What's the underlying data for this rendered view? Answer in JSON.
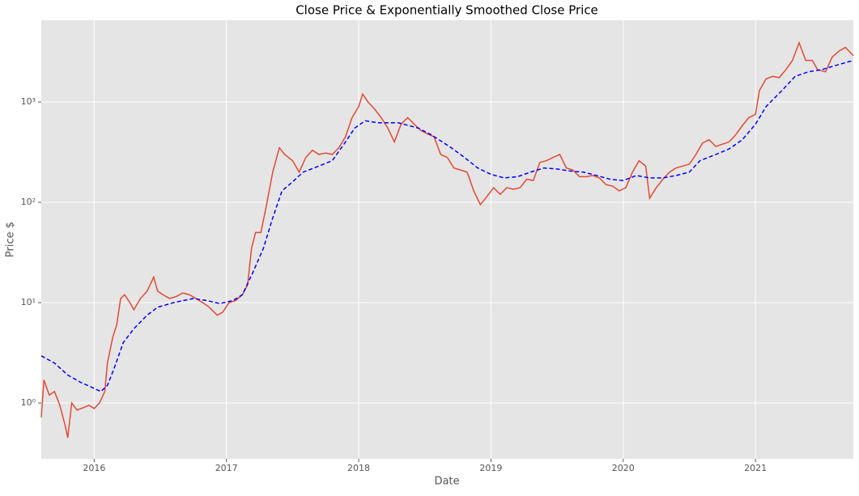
{
  "chart_data": {
    "type": "line",
    "title": "Close Price & Exponentially Smoothed Close Price",
    "x_label": "Date",
    "y_label": "Price $",
    "log_y": true,
    "grid": true,
    "xlim": [
      2015.6,
      2021.74
    ],
    "xticks": [
      2016,
      2017,
      2018,
      2019,
      2020,
      2021
    ],
    "ylim": [
      0.278,
      6530
    ],
    "yticks": [
      {
        "value": 1,
        "label": "10⁰"
      },
      {
        "value": 10,
        "label": "10¹"
      },
      {
        "value": 100,
        "label": "10²"
      },
      {
        "value": 1000,
        "label": "10³"
      }
    ],
    "series": [
      {
        "color": "#e24a33",
        "dash": false,
        "x": [
          2015.6,
          2015.62,
          2015.66,
          2015.7,
          2015.74,
          2015.78,
          2015.8,
          2015.83,
          2015.87,
          2015.92,
          2015.96,
          2016.0,
          2016.04,
          2016.08,
          2016.1,
          2016.14,
          2016.17,
          2016.2,
          2016.23,
          2016.27,
          2016.3,
          2016.35,
          2016.4,
          2016.45,
          2016.48,
          2016.52,
          2016.57,
          2016.62,
          2016.67,
          2016.72,
          2016.77,
          2016.82,
          2016.87,
          2016.93,
          2016.97,
          2017.02,
          2017.07,
          2017.12,
          2017.16,
          2017.19,
          2017.22,
          2017.26,
          2017.3,
          2017.35,
          2017.4,
          2017.44,
          2017.5,
          2017.55,
          2017.6,
          2017.65,
          2017.7,
          2017.75,
          2017.8,
          2017.85,
          2017.9,
          2017.95,
          2018.0,
          2018.03,
          2018.07,
          2018.12,
          2018.17,
          2018.22,
          2018.27,
          2018.32,
          2018.37,
          2018.42,
          2018.47,
          2018.52,
          2018.57,
          2018.62,
          2018.67,
          2018.72,
          2018.77,
          2018.82,
          2018.87,
          2018.92,
          2018.96,
          2019.02,
          2019.07,
          2019.12,
          2019.17,
          2019.22,
          2019.27,
          2019.32,
          2019.37,
          2019.42,
          2019.47,
          2019.52,
          2019.57,
          2019.62,
          2019.67,
          2019.72,
          2019.77,
          2019.82,
          2019.87,
          2019.92,
          2019.97,
          2020.02,
          2020.07,
          2020.12,
          2020.17,
          2020.2,
          2020.25,
          2020.3,
          2020.35,
          2020.4,
          2020.45,
          2020.5,
          2020.55,
          2020.6,
          2020.65,
          2020.7,
          2020.75,
          2020.8,
          2020.85,
          2020.9,
          2020.95,
          2021.0,
          2021.03,
          2021.08,
          2021.13,
          2021.18,
          2021.23,
          2021.28,
          2021.33,
          2021.38,
          2021.43,
          2021.47,
          2021.53,
          2021.58,
          2021.63,
          2021.68,
          2021.74
        ],
        "values": [
          0.72,
          1.7,
          1.2,
          1.3,
          0.95,
          0.6,
          0.45,
          1.0,
          0.85,
          0.9,
          0.95,
          0.88,
          1.0,
          1.3,
          2.5,
          4.5,
          6,
          11,
          12,
          10,
          8.5,
          11,
          13,
          18,
          13,
          12,
          11,
          11.5,
          12.5,
          12,
          11,
          10,
          9,
          7.5,
          8,
          10,
          10.5,
          12,
          15,
          35,
          50,
          50,
          90,
          200,
          350,
          300,
          260,
          200,
          280,
          330,
          300,
          310,
          300,
          350,
          450,
          700,
          900,
          1200,
          1000,
          850,
          700,
          550,
          400,
          600,
          700,
          600,
          520,
          480,
          450,
          300,
          280,
          220,
          210,
          200,
          130,
          95,
          110,
          140,
          120,
          140,
          135,
          140,
          170,
          165,
          250,
          260,
          280,
          300,
          220,
          210,
          180,
          180,
          185,
          175,
          150,
          145,
          130,
          140,
          200,
          260,
          230,
          110,
          140,
          170,
          200,
          220,
          230,
          240,
          300,
          390,
          420,
          360,
          380,
          400,
          470,
          580,
          700,
          750,
          1300,
          1700,
          1800,
          1750,
          2100,
          2600,
          3900,
          2600,
          2600,
          2100,
          2000,
          2800,
          3200,
          3500,
          2900
        ]
      },
      {
        "color": "#0000ff",
        "dash": true,
        "x": [
          2015.6,
          2015.7,
          2015.8,
          2015.9,
          2016.0,
          2016.05,
          2016.1,
          2016.15,
          2016.22,
          2016.3,
          2016.4,
          2016.48,
          2016.6,
          2016.75,
          2016.85,
          2016.95,
          2017.05,
          2017.12,
          2017.2,
          2017.28,
          2017.35,
          2017.42,
          2017.5,
          2017.58,
          2017.7,
          2017.8,
          2017.9,
          2017.97,
          2018.05,
          2018.15,
          2018.3,
          2018.45,
          2018.55,
          2018.7,
          2018.8,
          2018.9,
          2019.0,
          2019.1,
          2019.2,
          2019.3,
          2019.4,
          2019.5,
          2019.6,
          2019.7,
          2019.8,
          2019.9,
          2020.0,
          2020.1,
          2020.2,
          2020.3,
          2020.4,
          2020.5,
          2020.58,
          2020.7,
          2020.8,
          2020.9,
          2021.0,
          2021.08,
          2021.2,
          2021.3,
          2021.4,
          2021.5,
          2021.6,
          2021.74
        ],
        "values": [
          2.95,
          2.5,
          1.9,
          1.6,
          1.4,
          1.3,
          1.5,
          2.2,
          4,
          5.5,
          7.5,
          9,
          10,
          11,
          10.5,
          9.8,
          10.5,
          12,
          20,
          35,
          70,
          130,
          160,
          200,
          230,
          260,
          400,
          550,
          650,
          620,
          620,
          550,
          470,
          350,
          280,
          220,
          190,
          175,
          180,
          200,
          220,
          215,
          205,
          200,
          185,
          170,
          165,
          185,
          175,
          175,
          185,
          200,
          260,
          300,
          340,
          420,
          600,
          900,
          1300,
          1800,
          2000,
          2100,
          2300,
          2600
        ]
      }
    ]
  }
}
